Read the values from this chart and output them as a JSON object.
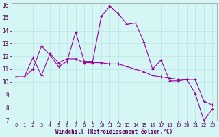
{
  "line1_x": [
    0,
    1,
    2,
    3,
    4,
    5,
    6,
    7,
    8,
    9,
    10,
    11,
    12,
    13,
    14,
    15,
    16,
    17,
    18,
    19,
    20,
    21,
    22,
    23
  ],
  "line1_y": [
    10.4,
    10.4,
    11.0,
    12.8,
    12.1,
    11.2,
    11.6,
    13.9,
    11.6,
    11.6,
    15.1,
    15.9,
    15.3,
    14.5,
    14.6,
    13.1,
    11.0,
    11.7,
    10.1,
    10.1,
    10.2,
    9.1,
    7.0,
    7.9
  ],
  "line2_x": [
    0,
    1,
    2,
    3,
    4,
    5,
    6,
    7,
    8,
    9,
    10,
    11,
    12,
    13,
    14,
    15,
    16,
    17,
    18,
    19,
    20,
    21,
    22,
    23
  ],
  "line2_y": [
    10.4,
    10.4,
    11.9,
    10.5,
    12.2,
    11.5,
    11.8,
    11.8,
    11.5,
    11.5,
    11.5,
    11.4,
    11.4,
    11.2,
    11.0,
    10.8,
    10.5,
    10.4,
    10.3,
    10.2,
    10.2,
    10.2,
    8.5,
    8.2
  ],
  "color": "#990099",
  "background": "#d6f5f5",
  "grid_color": "#b8e8e8",
  "xlabel": "Windchill (Refroidissement éolien,°C)",
  "ylim": [
    7,
    16
  ],
  "xlim": [
    0,
    23
  ],
  "yticks": [
    7,
    8,
    9,
    10,
    11,
    12,
    13,
    14,
    15,
    16
  ],
  "xticks": [
    0,
    1,
    2,
    3,
    4,
    5,
    6,
    7,
    8,
    9,
    10,
    11,
    12,
    13,
    14,
    15,
    16,
    17,
    18,
    19,
    20,
    21,
    22,
    23
  ]
}
